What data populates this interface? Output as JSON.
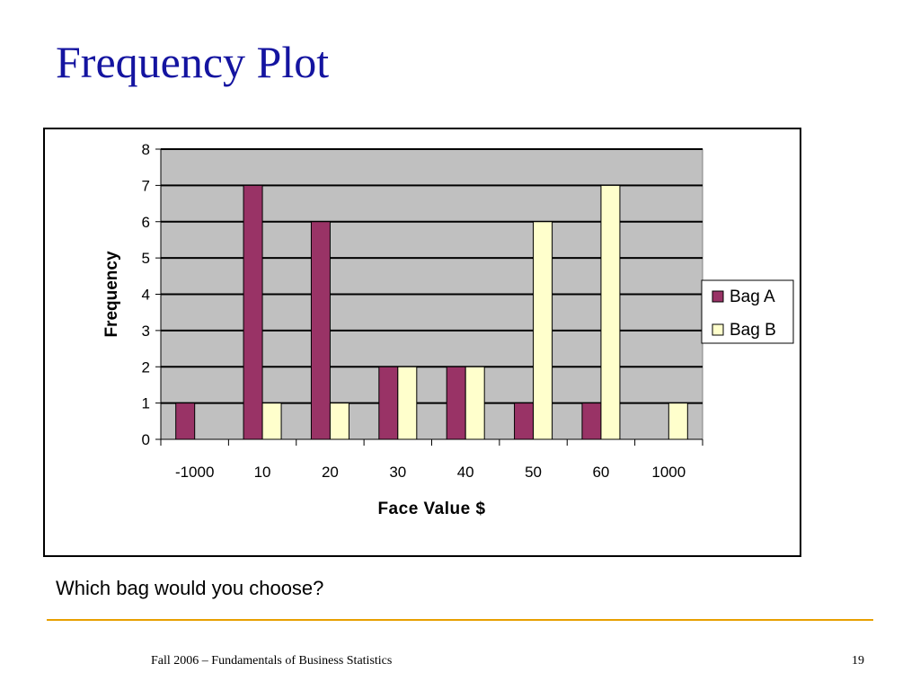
{
  "slide": {
    "title": "Frequency Plot",
    "question": "Which bag would you choose?",
    "footer": "Fall 2006 – Fundamentals of Business Statistics",
    "page_number": "19",
    "accent_color": "#e8a000",
    "title_color": "#1414a0"
  },
  "chart_data": {
    "type": "bar",
    "title": "",
    "xlabel": "Face Value $",
    "ylabel": "Frequency",
    "categories": [
      "-1000",
      "10",
      "20",
      "30",
      "40",
      "50",
      "60",
      "1000"
    ],
    "series": [
      {
        "name": "Bag A",
        "values": [
          1,
          7,
          6,
          2,
          2,
          1,
          1,
          0
        ],
        "color": "#993366"
      },
      {
        "name": "Bag B",
        "values": [
          0,
          1,
          1,
          2,
          2,
          6,
          7,
          1
        ],
        "color": "#ffffcc"
      }
    ],
    "ylim": [
      0,
      8
    ],
    "yticks": [
      0,
      1,
      2,
      3,
      4,
      5,
      6,
      7,
      8
    ],
    "grid": true,
    "plot_background": "#c0c0c0",
    "legend_position": "right"
  }
}
